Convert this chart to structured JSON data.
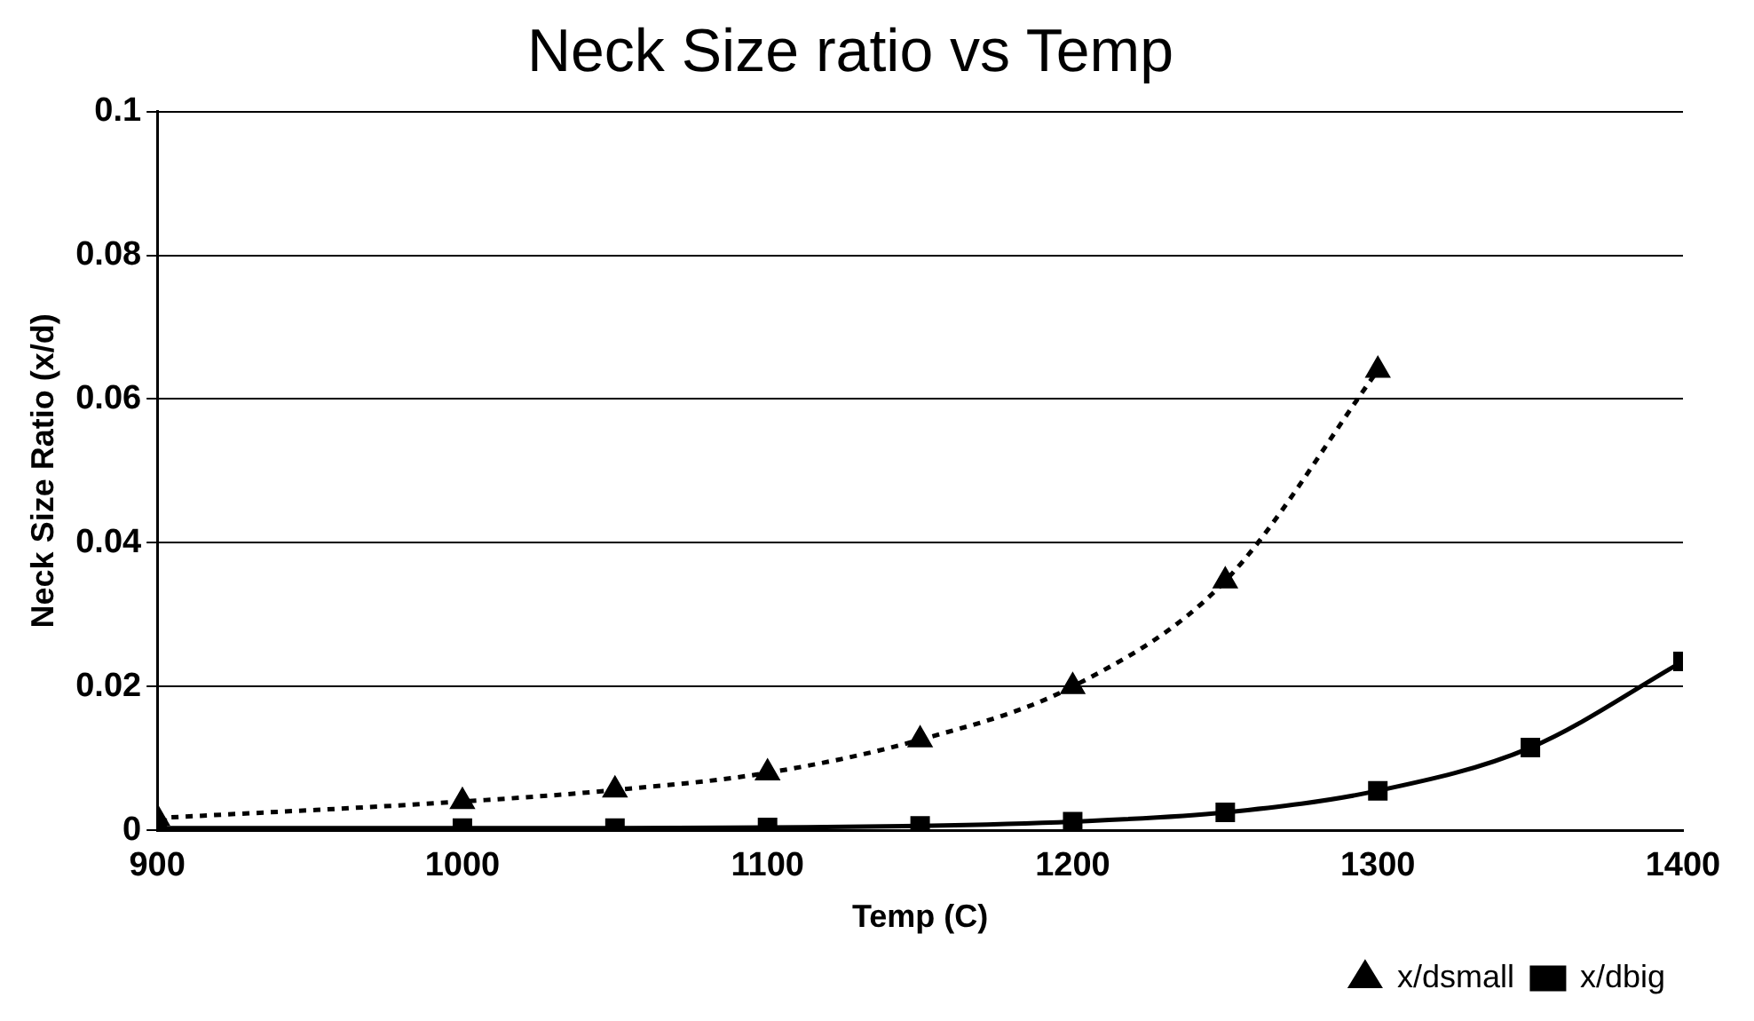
{
  "chart_data": {
    "type": "line",
    "title": "Neck Size ratio vs Temp",
    "xlabel": "Temp (C)",
    "ylabel": "Neck Size Ratio (x/d)",
    "x": [
      900,
      1000,
      1050,
      1100,
      1150,
      1200,
      1250,
      1300,
      1350,
      1400
    ],
    "series": [
      {
        "name": "x/dsmall",
        "color": "#000000",
        "marker": "triangle",
        "line_style": "dotted",
        "values": [
          0.0017,
          0.004,
          0.0056,
          0.008,
          0.0126,
          0.02,
          0.0347,
          0.064,
          null,
          null
        ]
      },
      {
        "name": "x/dbig",
        "color": "#000000",
        "marker": "square",
        "line_style": "solid",
        "values": [
          0.0003,
          0.0003,
          0.0003,
          0.0004,
          0.0006,
          0.0012,
          0.0025,
          0.0055,
          0.0115,
          0.0235
        ]
      }
    ],
    "xlim": [
      900,
      1400
    ],
    "xticks": [
      900,
      1000,
      1100,
      1200,
      1300,
      1400
    ],
    "ylim": [
      0,
      0.1
    ],
    "yticks": [
      0,
      0.02,
      0.04,
      0.06,
      0.08,
      0.1
    ],
    "grid": "y",
    "legend": "bottom right"
  }
}
